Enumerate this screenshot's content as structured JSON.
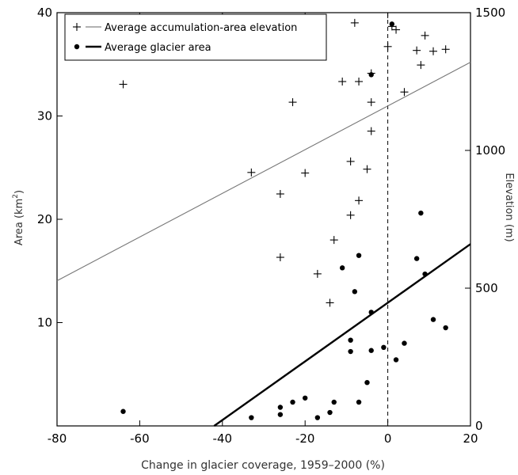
{
  "chart_data": {
    "type": "scatter",
    "xlabel": "Change in glacier coverage, 1959–2000 (%)",
    "ylabel_left": "Area (km",
    "ylabel_left_sup": "2",
    "ylabel_left_close": ")",
    "ylabel_right": "Elevation  (m)",
    "xlim": [
      -80,
      20
    ],
    "ylim_left": [
      0,
      40
    ],
    "ylim_right": [
      0,
      1500
    ],
    "x_ticks": [
      "-80",
      "-60",
      "-40",
      "-20",
      "0",
      "20"
    ],
    "y_left_ticks": [
      "10",
      "20",
      "30",
      "40"
    ],
    "y_right_ticks": [
      "0",
      "500",
      "1000",
      "1500"
    ],
    "x_tick_values": [
      -80,
      -60,
      -40,
      -20,
      0,
      20
    ],
    "y_left_tick_values": [
      10,
      20,
      30,
      40
    ],
    "y_right_tick_values": [
      0,
      500,
      1000,
      1500
    ],
    "reference_line_x": 0,
    "series": [
      {
        "name": "Average accumulation-area elevation",
        "axis": "right",
        "marker": "plus",
        "x": [
          -64,
          -33,
          -26,
          -26,
          -23,
          -20,
          -17,
          -14,
          -13,
          -11,
          -9,
          -9,
          -7,
          -7,
          -5,
          -4,
          -4,
          -4,
          0,
          1,
          2,
          4,
          7,
          8,
          9,
          11,
          14,
          -8
        ],
        "y": [
          1240,
          920,
          842,
          612,
          1175,
          918,
          552,
          447,
          675,
          1250,
          765,
          960,
          818,
          1250,
          932,
          1070,
          1175,
          1280,
          1377,
          1450,
          1438,
          1212,
          1363,
          1310,
          1417,
          1360,
          1367,
          1463
        ]
      },
      {
        "name": "Average glacier area",
        "axis": "left",
        "marker": "dot",
        "x": [
          -64,
          -33,
          -26,
          -26,
          -23,
          -20,
          -17,
          -14,
          -13,
          -11,
          -9,
          -9,
          -8,
          -7,
          -7,
          -5,
          -4,
          -4,
          -4,
          -1,
          2,
          4,
          7,
          8,
          9,
          11,
          14,
          1
        ],
        "y": [
          1.4,
          0.8,
          1.1,
          1.8,
          2.3,
          2.7,
          0.8,
          1.3,
          2.3,
          15.3,
          7.2,
          8.3,
          13.0,
          2.3,
          16.5,
          4.2,
          11.0,
          7.3,
          34.0,
          7.6,
          6.4,
          8.0,
          16.2,
          20.6,
          14.7,
          10.3,
          9.5,
          38.9
        ]
      }
    ],
    "fit_lines": [
      {
        "name": "Average accumulation-area elevation",
        "axis": "right",
        "x": [
          -80,
          20
        ],
        "y": [
          527,
          1320
        ]
      },
      {
        "name": "Average glacier area",
        "axis": "left",
        "x": [
          -42,
          20
        ],
        "y": [
          0,
          17.6
        ]
      }
    ],
    "legend": "top-left",
    "grid": false
  }
}
